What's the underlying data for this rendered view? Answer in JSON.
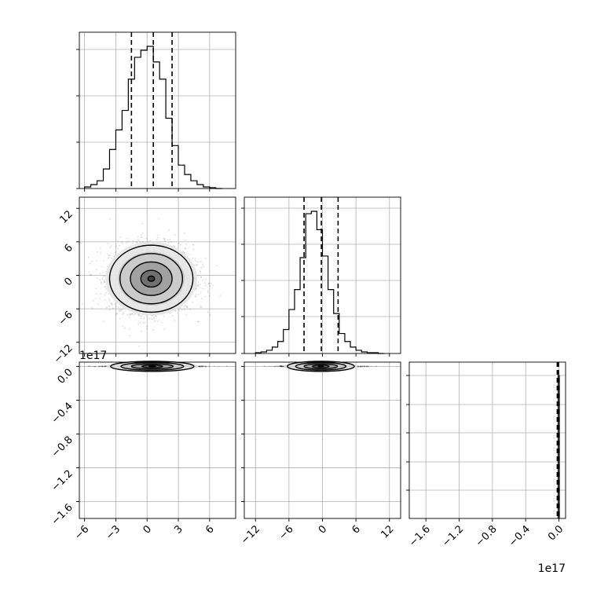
{
  "chart_data": {
    "type": "corner",
    "grid": true,
    "histogram_quantile_lines": [
      {
        "panel": 0,
        "values": [
          -1.5,
          0.6,
          2.4
        ]
      },
      {
        "panel": 1,
        "values": [
          -3.3,
          -0.2,
          2.8
        ]
      },
      {
        "panel": 2,
        "values": [
          -2000000000000000.0,
          -1000000000000000.0,
          -500000000000000.0
        ]
      }
    ],
    "histograms": [
      {
        "panel": 0,
        "bin_edges": [
          -6.0,
          -5.4,
          -4.8,
          -4.2,
          -3.6,
          -3.0,
          -2.4,
          -1.8,
          -1.2,
          -0.6,
          0.0,
          0.6,
          1.2,
          1.8,
          2.4,
          3.0,
          3.6,
          4.2,
          4.8,
          5.4,
          6.0,
          6.6,
          7.2
        ],
        "counts": [
          2,
          5,
          10,
          25,
          50,
          75,
          100,
          140,
          168,
          177,
          182,
          162,
          140,
          90,
          55,
          30,
          18,
          10,
          5,
          2,
          1,
          0
        ]
      },
      {
        "panel": 1,
        "bin_edges": [
          -12,
          -11,
          -10,
          -9,
          -8,
          -7,
          -6,
          -5,
          -4,
          -3,
          -2,
          -1,
          0,
          1,
          2,
          3,
          4,
          5,
          6,
          7,
          8,
          9,
          10,
          11
        ],
        "counts": [
          1,
          2,
          4,
          8,
          15,
          30,
          55,
          80,
          120,
          175,
          178,
          155,
          122,
          80,
          50,
          25,
          15,
          8,
          4,
          2,
          1,
          1,
          0
        ]
      },
      {
        "panel": 2,
        "bin_edges": [
          -1000000000000000.0,
          500000000000000.0
        ],
        "counts": [
          120
        ]
      }
    ],
    "scatter_panels": [
      {
        "panel": "x0-x1",
        "x_center": 0.4,
        "y_center": -0.6,
        "x_sd": 2.0,
        "y_sd": 3.0
      },
      {
        "panel": "x0-x2",
        "x_center": 0.5,
        "y_center": 0.0,
        "x_sd": 2.0,
        "y_sd": 400000000000000.0
      },
      {
        "panel": "x1-x2",
        "x_center": -0.3,
        "y_center": 0.0,
        "x_sd": 3.0,
        "y_sd": 400000000000000.0
      }
    ],
    "axes": {
      "x0": {
        "range": [
          -6.5,
          8.5
        ],
        "ticks": [
          -6,
          -3,
          0,
          3,
          6
        ],
        "tick_labels": [
          "−6",
          "−3",
          "0",
          "3",
          "6"
        ]
      },
      "x1": {
        "range": [
          -14,
          14
        ],
        "ticks": [
          -12,
          -6,
          0,
          6,
          12
        ],
        "tick_labels": [
          "−12",
          "−6",
          "0",
          "6",
          "12"
        ]
      },
      "x2": {
        "range": [
          -1.8e+17,
          8000000000000000.0
        ],
        "ticks": [
          -1.6e+17,
          -1.2e+17,
          -8e+16,
          -4e+16,
          0.0
        ],
        "tick_labels": [
          "−1.6",
          "−1.2",
          "−0.8",
          "−0.4",
          "0.0"
        ],
        "offset_label": "1e17"
      }
    }
  }
}
